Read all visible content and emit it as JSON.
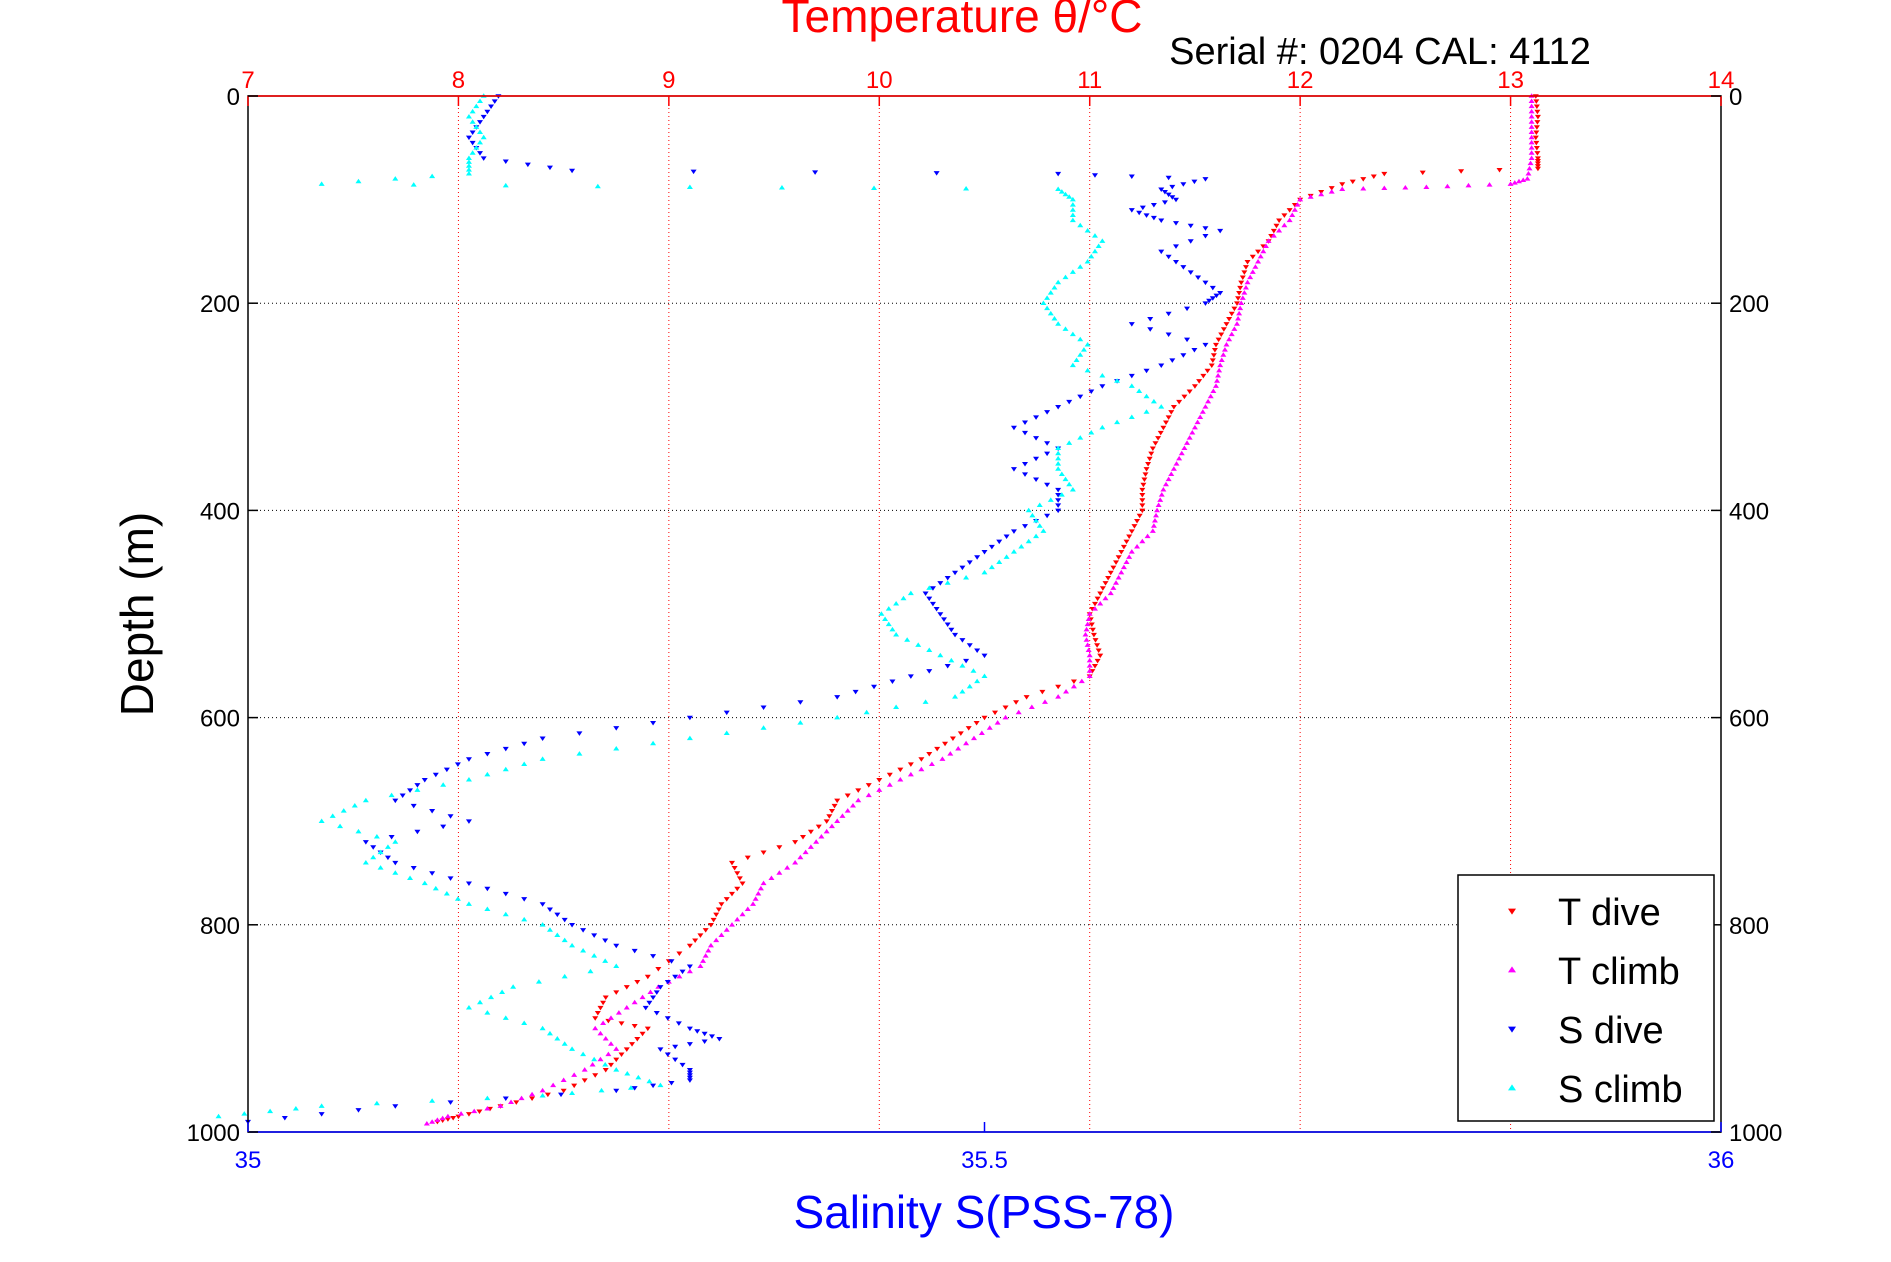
{
  "chart_data": {
    "type": "scatter",
    "title_top": "Temperature θ/°C",
    "serial_label": "Serial #: 0204  CAL: 4112",
    "xlabel_bottom": "Salinity S(PSS-78)",
    "ylabel": "Depth (m)",
    "x_top_ticks": [
      "7",
      "8",
      "9",
      "10",
      "11",
      "12",
      "13",
      "14"
    ],
    "x_top_lim": [
      7,
      14
    ],
    "x_bottom_ticks": [
      "35",
      "35.5",
      "36"
    ],
    "x_bottom_lim": [
      35,
      36
    ],
    "y_ticks": [
      "0",
      "200",
      "400",
      "600",
      "800",
      "1000"
    ],
    "y_lim": [
      0,
      1000
    ],
    "y_reversed": true,
    "grid": true,
    "legend_placement": "bottom-right",
    "colors": {
      "T dive": "#ff0000",
      "T climb": "#ff00ff",
      "S dive": "#0000ff",
      "S climb": "#00ffff",
      "top_axis": "#ff0000",
      "bottom_axis": "#0000ff"
    },
    "series": [
      {
        "name": "T dive",
        "axis": "top",
        "marker": "triangle-down",
        "points": [
          [
            13.12,
            0
          ],
          [
            13.13,
            20
          ],
          [
            13.12,
            40
          ],
          [
            13.13,
            60
          ],
          [
            13.13,
            70
          ],
          [
            12.4,
            75
          ],
          [
            12.2,
            85
          ],
          [
            12.0,
            100
          ],
          [
            11.9,
            120
          ],
          [
            11.85,
            140
          ],
          [
            11.75,
            160
          ],
          [
            11.72,
            180
          ],
          [
            11.7,
            200
          ],
          [
            11.65,
            220
          ],
          [
            11.6,
            240
          ],
          [
            11.58,
            260
          ],
          [
            11.5,
            280
          ],
          [
            11.4,
            300
          ],
          [
            11.35,
            320
          ],
          [
            11.3,
            340
          ],
          [
            11.27,
            360
          ],
          [
            11.25,
            380
          ],
          [
            11.25,
            400
          ],
          [
            11.2,
            420
          ],
          [
            11.15,
            440
          ],
          [
            11.1,
            460
          ],
          [
            11.05,
            480
          ],
          [
            11.0,
            500
          ],
          [
            11.02,
            520
          ],
          [
            11.05,
            540
          ],
          [
            11.0,
            560
          ],
          [
            10.7,
            580
          ],
          [
            10.5,
            600
          ],
          [
            10.35,
            620
          ],
          [
            10.2,
            640
          ],
          [
            10.0,
            660
          ],
          [
            9.8,
            680
          ],
          [
            9.75,
            700
          ],
          [
            9.6,
            720
          ],
          [
            9.3,
            740
          ],
          [
            9.35,
            760
          ],
          [
            9.25,
            780
          ],
          [
            9.2,
            800
          ],
          [
            9.1,
            820
          ],
          [
            8.9,
            850
          ],
          [
            8.7,
            870
          ],
          [
            8.65,
            890
          ],
          [
            8.9,
            900
          ],
          [
            8.8,
            920
          ],
          [
            8.7,
            940
          ],
          [
            8.5,
            960
          ],
          [
            8.2,
            975
          ],
          [
            8.0,
            985
          ],
          [
            7.9,
            990
          ]
        ]
      },
      {
        "name": "T climb",
        "axis": "top",
        "marker": "triangle-up",
        "points": [
          [
            13.1,
            0
          ],
          [
            13.1,
            20
          ],
          [
            13.1,
            40
          ],
          [
            13.1,
            60
          ],
          [
            13.08,
            80
          ],
          [
            13.0,
            85
          ],
          [
            12.6,
            88
          ],
          [
            12.2,
            90
          ],
          [
            12.0,
            100
          ],
          [
            11.95,
            120
          ],
          [
            11.85,
            140
          ],
          [
            11.8,
            160
          ],
          [
            11.75,
            180
          ],
          [
            11.72,
            200
          ],
          [
            11.7,
            220
          ],
          [
            11.65,
            240
          ],
          [
            11.62,
            260
          ],
          [
            11.6,
            280
          ],
          [
            11.55,
            300
          ],
          [
            11.5,
            320
          ],
          [
            11.45,
            340
          ],
          [
            11.4,
            360
          ],
          [
            11.35,
            380
          ],
          [
            11.32,
            400
          ],
          [
            11.3,
            420
          ],
          [
            11.2,
            440
          ],
          [
            11.15,
            460
          ],
          [
            11.1,
            480
          ],
          [
            11.0,
            500
          ],
          [
            10.98,
            520
          ],
          [
            11.0,
            540
          ],
          [
            11.0,
            560
          ],
          [
            10.85,
            580
          ],
          [
            10.6,
            600
          ],
          [
            10.45,
            620
          ],
          [
            10.3,
            640
          ],
          [
            10.1,
            660
          ],
          [
            9.9,
            680
          ],
          [
            9.8,
            700
          ],
          [
            9.7,
            720
          ],
          [
            9.6,
            740
          ],
          [
            9.45,
            760
          ],
          [
            9.4,
            780
          ],
          [
            9.3,
            800
          ],
          [
            9.2,
            820
          ],
          [
            9.15,
            840
          ],
          [
            8.95,
            860
          ],
          [
            8.8,
            880
          ],
          [
            8.65,
            900
          ],
          [
            8.75,
            920
          ],
          [
            8.6,
            940
          ],
          [
            8.4,
            960
          ],
          [
            8.2,
            975
          ],
          [
            7.95,
            985
          ],
          [
            7.85,
            992
          ]
        ]
      },
      {
        "name": "S dive",
        "axis": "bottom",
        "marker": "triangle-down",
        "points": [
          [
            35.17,
            0
          ],
          [
            35.16,
            20
          ],
          [
            35.15,
            40
          ],
          [
            35.16,
            60
          ],
          [
            35.22,
            72
          ],
          [
            35.55,
            75
          ],
          [
            35.65,
            80
          ],
          [
            35.62,
            90
          ],
          [
            35.63,
            100
          ],
          [
            35.6,
            110
          ],
          [
            35.62,
            120
          ],
          [
            35.66,
            130
          ],
          [
            35.62,
            150
          ],
          [
            35.64,
            170
          ],
          [
            35.66,
            190
          ],
          [
            35.65,
            200
          ],
          [
            35.6,
            220
          ],
          [
            35.65,
            240
          ],
          [
            35.62,
            260
          ],
          [
            35.58,
            280
          ],
          [
            35.55,
            300
          ],
          [
            35.52,
            320
          ],
          [
            35.55,
            340
          ],
          [
            35.52,
            360
          ],
          [
            35.55,
            380
          ],
          [
            35.55,
            400
          ],
          [
            35.52,
            420
          ],
          [
            35.5,
            440
          ],
          [
            35.48,
            460
          ],
          [
            35.46,
            480
          ],
          [
            35.47,
            500
          ],
          [
            35.48,
            520
          ],
          [
            35.5,
            540
          ],
          [
            35.45,
            560
          ],
          [
            35.4,
            580
          ],
          [
            35.3,
            600
          ],
          [
            35.2,
            620
          ],
          [
            35.15,
            640
          ],
          [
            35.12,
            660
          ],
          [
            35.1,
            680
          ],
          [
            35.15,
            700
          ],
          [
            35.08,
            720
          ],
          [
            35.1,
            740
          ],
          [
            35.15,
            760
          ],
          [
            35.2,
            780
          ],
          [
            35.22,
            800
          ],
          [
            35.25,
            820
          ],
          [
            35.3,
            840
          ],
          [
            35.28,
            860
          ],
          [
            35.27,
            880
          ],
          [
            35.3,
            900
          ],
          [
            35.32,
            910
          ],
          [
            35.28,
            920
          ],
          [
            35.3,
            940
          ],
          [
            35.3,
            950
          ],
          [
            35.25,
            960
          ],
          [
            35.1,
            975
          ],
          [
            35.0,
            990
          ]
        ]
      },
      {
        "name": "S climb",
        "axis": "bottom",
        "marker": "triangle-up",
        "points": [
          [
            35.16,
            0
          ],
          [
            35.15,
            20
          ],
          [
            35.16,
            40
          ],
          [
            35.15,
            60
          ],
          [
            35.15,
            75
          ],
          [
            35.05,
            85
          ],
          [
            35.3,
            88
          ],
          [
            35.55,
            90
          ],
          [
            35.56,
            100
          ],
          [
            35.56,
            120
          ],
          [
            35.58,
            140
          ],
          [
            35.57,
            160
          ],
          [
            35.55,
            180
          ],
          [
            35.54,
            200
          ],
          [
            35.55,
            220
          ],
          [
            35.57,
            240
          ],
          [
            35.56,
            260
          ],
          [
            35.6,
            280
          ],
          [
            35.62,
            300
          ],
          [
            35.58,
            320
          ],
          [
            35.55,
            340
          ],
          [
            35.55,
            360
          ],
          [
            35.56,
            380
          ],
          [
            35.53,
            400
          ],
          [
            35.54,
            420
          ],
          [
            35.52,
            440
          ],
          [
            35.5,
            460
          ],
          [
            35.45,
            480
          ],
          [
            35.43,
            500
          ],
          [
            35.44,
            520
          ],
          [
            35.47,
            540
          ],
          [
            35.5,
            560
          ],
          [
            35.48,
            580
          ],
          [
            35.4,
            600
          ],
          [
            35.3,
            620
          ],
          [
            35.2,
            640
          ],
          [
            35.15,
            660
          ],
          [
            35.08,
            680
          ],
          [
            35.05,
            700
          ],
          [
            35.1,
            720
          ],
          [
            35.08,
            740
          ],
          [
            35.12,
            760
          ],
          [
            35.15,
            780
          ],
          [
            35.2,
            800
          ],
          [
            35.22,
            820
          ],
          [
            35.25,
            840
          ],
          [
            35.18,
            860
          ],
          [
            35.15,
            880
          ],
          [
            35.2,
            900
          ],
          [
            35.22,
            920
          ],
          [
            35.25,
            940
          ],
          [
            35.28,
            955
          ],
          [
            35.2,
            965
          ],
          [
            35.05,
            975
          ],
          [
            34.98,
            985
          ]
        ]
      }
    ]
  }
}
